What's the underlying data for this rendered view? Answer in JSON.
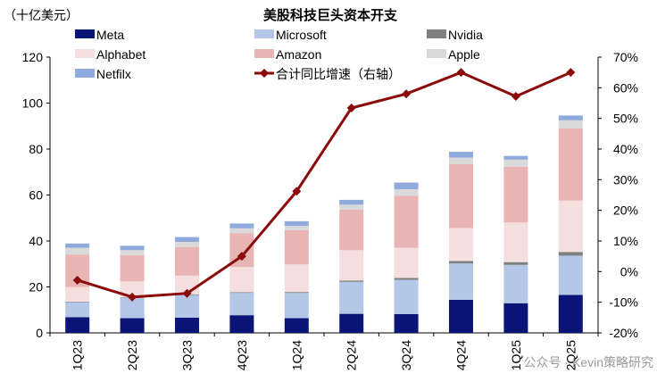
{
  "chart_data": {
    "type": "bar",
    "title": "美股科技巨头资本开支",
    "unit_label": "（十亿美元）",
    "categories": [
      "1Q23",
      "2Q23",
      "3Q23",
      "4Q23",
      "1Q24",
      "2Q24",
      "3Q24",
      "4Q24",
      "1Q25",
      "2Q25"
    ],
    "stacked": true,
    "series": [
      {
        "name": "Meta",
        "color": "#0b1577",
        "values": [
          6.8,
          6.4,
          6.6,
          7.7,
          6.4,
          8.3,
          8.2,
          14.4,
          12.9,
          16.5
        ]
      },
      {
        "name": "Microsoft",
        "color": "#b4c7e7",
        "values": [
          6.6,
          8.9,
          9.9,
          9.7,
          11.0,
          13.9,
          14.9,
          15.8,
          16.7,
          17.1
        ]
      },
      {
        "name": "Nvidia",
        "color": "#808080",
        "values": [
          0.2,
          0.2,
          0.3,
          0.3,
          0.4,
          0.6,
          0.8,
          1.1,
          1.2,
          1.6
        ]
      },
      {
        "name": "Alphabet",
        "color": "#f4dede",
        "values": [
          6.3,
          6.9,
          8.1,
          11.0,
          12.0,
          13.2,
          13.1,
          14.3,
          17.2,
          22.4
        ]
      },
      {
        "name": "Amazon",
        "color": "#e8b4b4",
        "values": [
          14.2,
          11.5,
          12.5,
          14.6,
          14.9,
          17.6,
          22.6,
          27.8,
          24.3,
          31.4
        ]
      },
      {
        "name": "Apple",
        "color": "#d9d9d9",
        "values": [
          2.9,
          2.1,
          2.2,
          2.2,
          1.9,
          2.2,
          2.9,
          2.9,
          3.1,
          3.5
        ]
      },
      {
        "name": "Netfilx",
        "color": "#8faadc",
        "values": [
          1.9,
          1.9,
          2.1,
          2.1,
          2.0,
          2.1,
          2.9,
          2.5,
          1.6,
          2.1
        ]
      }
    ],
    "line_series": {
      "name": "合计同比增速（右轴）",
      "color": "#8b0a0a",
      "values": [
        -2.8,
        -8.3,
        -7.1,
        5.0,
        26.2,
        53.4,
        58.0,
        65.0,
        57.2,
        65.0
      ]
    },
    "y_left": {
      "min": 0,
      "max": 120,
      "ticks": [
        0,
        20,
        40,
        60,
        80,
        100,
        120
      ]
    },
    "y_right": {
      "min": -20,
      "max": 70,
      "ticks": [
        -20,
        -10,
        0,
        10,
        20,
        30,
        40,
        50,
        60,
        70
      ],
      "suffix": "%"
    },
    "legend_placement": "top"
  },
  "watermark": "公众号 · Kevin策略研究"
}
